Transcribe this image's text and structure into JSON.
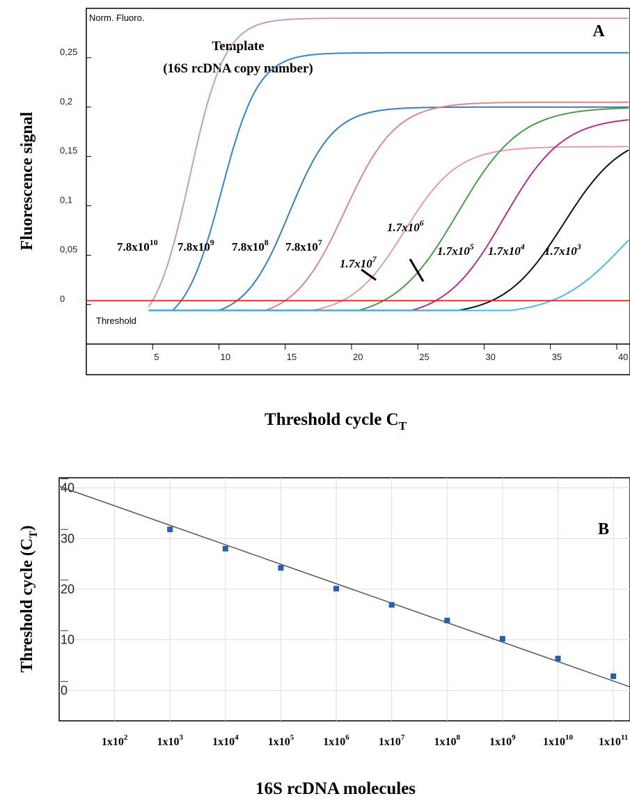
{
  "panel_a": {
    "corner_label": "Norm. Fluoro.",
    "legend_title_1": "Template",
    "legend_title_2": "(16S rcDNA copy number)",
    "panel_letter": "A",
    "y_axis_title": "Fluorescence signal",
    "x_axis_title": "Threshold cycle C",
    "x_axis_title_sub": "T",
    "threshold_label": "Threshold",
    "y_ticks": [
      "0,25",
      "0,2",
      "0,15",
      "0,1",
      "0,05",
      "0"
    ],
    "x_ticks": [
      "5",
      "10",
      "15",
      "20",
      "25",
      "30",
      "35",
      "40"
    ],
    "curve_labels": [
      {
        "base": "7.8x10",
        "exp": "10"
      },
      {
        "base": "7.8x10",
        "exp": "9"
      },
      {
        "base": "7.8x10",
        "exp": "8"
      },
      {
        "base": "7.8x10",
        "exp": "7"
      },
      {
        "base": "1.7x10",
        "exp": "7"
      },
      {
        "base": "1.7x10",
        "exp": "6"
      },
      {
        "base": "1.7x10",
        "exp": "5"
      },
      {
        "base": "1.7x10",
        "exp": "4"
      },
      {
        "base": "1.7x10",
        "exp": "3"
      }
    ]
  },
  "panel_b": {
    "panel_letter": "B",
    "y_axis_title": "Threshold cycle (C",
    "y_axis_title_sub": "T",
    "y_axis_title_end": ")",
    "x_axis_title": "16S rcDNA molecules",
    "y_ticks": [
      "40",
      "30",
      "20",
      "10",
      "0"
    ],
    "x_ticks": [
      {
        "base": "1x10",
        "exp": "2"
      },
      {
        "base": "1x10",
        "exp": "3"
      },
      {
        "base": "1x10",
        "exp": "4"
      },
      {
        "base": "1x10",
        "exp": "5"
      },
      {
        "base": "1x10",
        "exp": "6"
      },
      {
        "base": "1x10",
        "exp": "7"
      },
      {
        "base": "1x10",
        "exp": "8"
      },
      {
        "base": "1x10",
        "exp": "9"
      },
      {
        "base": "1x10",
        "exp": "10"
      },
      {
        "base": "1x10",
        "exp": "11"
      }
    ]
  },
  "chart_data": [
    {
      "type": "line",
      "xlim": [
        0,
        41
      ],
      "ylim": [
        -0.04,
        0.3
      ],
      "threshold": 0.004,
      "threshold_color": "#cc2222",
      "series": [
        {
          "name": "7.8x10^10",
          "color": "#c79ac0",
          "ct": 4.5,
          "plateau": 0.29,
          "mid": 7.8,
          "k": 0.75
        },
        {
          "name": "7.8x10^9",
          "color": "#3a86c8",
          "ct": 6.5,
          "plateau": 0.255,
          "mid": 10.2,
          "k": 0.72
        },
        {
          "name": "7.8x10^8",
          "color": "#3f7fb5",
          "ct": 10,
          "plateau": 0.2,
          "mid": 15.3,
          "k": 0.6
        },
        {
          "name": "7.8x10^7",
          "color": "#d48a8a",
          "ct": 13.5,
          "plateau": 0.205,
          "mid": 19.5,
          "k": 0.52
        },
        {
          "name": "1.7x10^7",
          "color": "#e0a0a0",
          "ct": 17,
          "plateau": 0.16,
          "mid": 24,
          "k": 0.5
        },
        {
          "name": "1.7x10^6",
          "color": "#4a9a4a",
          "ct": 20.5,
          "plateau": 0.2,
          "mid": 28,
          "k": 0.42
        },
        {
          "name": "1.7x10^5",
          "color": "#b0308a",
          "ct": 24.5,
          "plateau": 0.19,
          "mid": 31.5,
          "k": 0.45
        },
        {
          "name": "1.7x10^4",
          "color": "#111111",
          "ct": 28,
          "plateau": 0.175,
          "mid": 36,
          "k": 0.45
        },
        {
          "name": "1.7x10^3",
          "color": "#55b8e0",
          "ct": 32,
          "plateau": 0.13,
          "mid": 40.5,
          "k": 0.4
        }
      ]
    },
    {
      "type": "scatter",
      "x_scale": "log10",
      "xlim": [
        1,
        11.3
      ],
      "ylim": [
        -6,
        42
      ],
      "x": [
        1000,
        10000,
        100000,
        1000000,
        10000000,
        100000000,
        1000000000,
        10000000000,
        100000000000
      ],
      "y": [
        31.8,
        28.0,
        24.2,
        20.1,
        16.9,
        13.8,
        10.2,
        6.3,
        2.8
      ],
      "fit_line": {
        "x_start": 10,
        "y_start": 40.3,
        "x_end": 200000000000,
        "y_end": 0.7
      },
      "point_color": "#2a5ea8",
      "line_color": "#555555"
    }
  ]
}
